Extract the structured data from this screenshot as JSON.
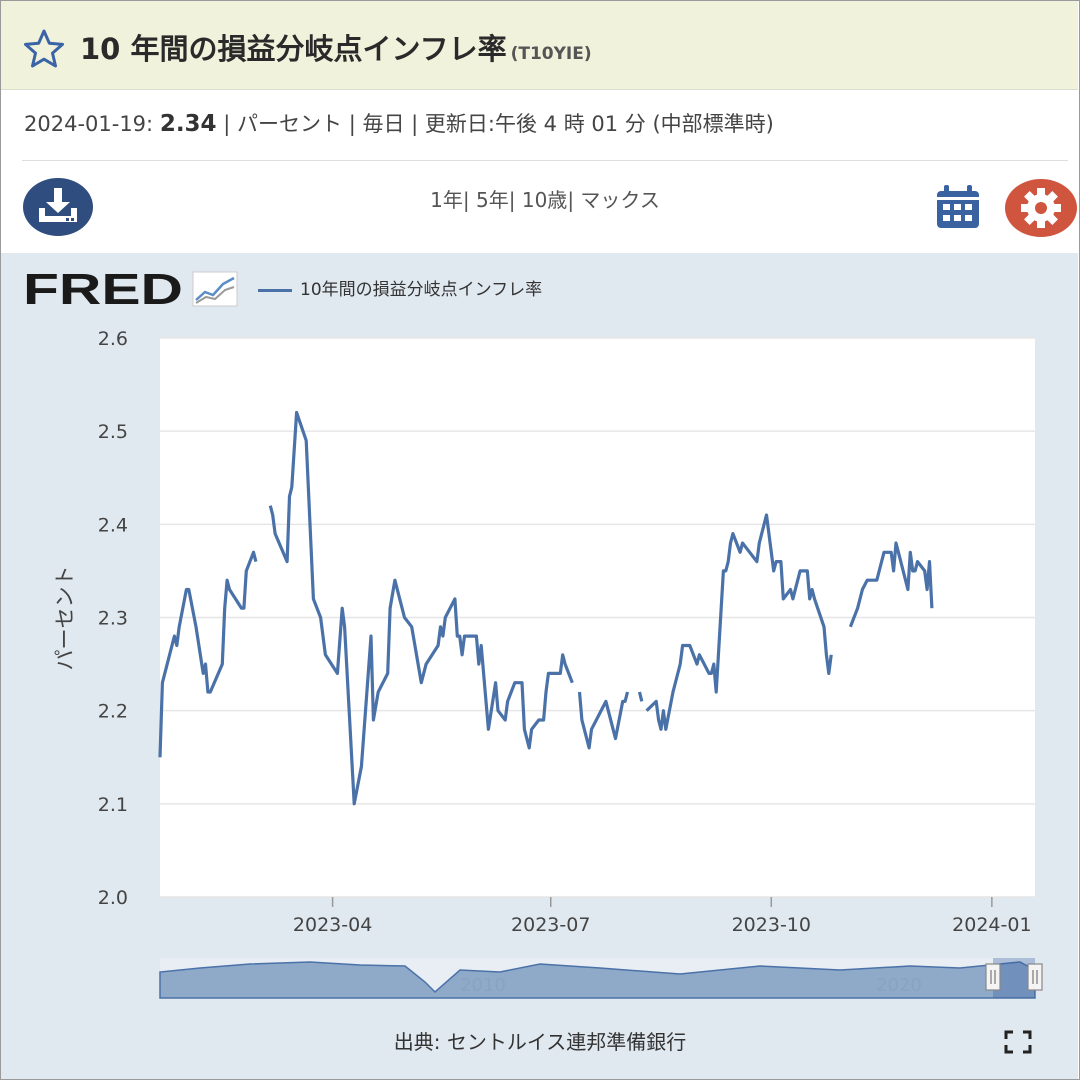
{
  "header": {
    "title": "10 年間の損益分岐点インフレ率",
    "series_id": "(T10YIE)"
  },
  "meta": {
    "date": "2024-01-19:",
    "value": "2.34",
    "unit": "| パーセント",
    "frequency": "| 毎日",
    "updated": "| 更新日:午後 4 時 01 分 (中部標準時)"
  },
  "toolbar": {
    "ranges": [
      "1年",
      "5年",
      "10歳",
      "マックス"
    ],
    "icons": [
      "download-icon",
      "calendar-icon",
      "gear-icon"
    ]
  },
  "logo": {
    "text": "FRED"
  },
  "legend": {
    "label": "10年間の損益分岐点インフレ率"
  },
  "footer": {
    "source": "出典: セントルイス連邦準備銀行"
  },
  "colors": {
    "line": "#4a72a8",
    "title_bg": "#f1f2dc",
    "chart_bg": "#e1e9f0",
    "download": "#2f4d7e",
    "gear": "#d0553f",
    "calendar": "#3a62a0"
  },
  "navigator": {
    "labels": [
      "2010",
      "2020"
    ]
  },
  "chart_data": {
    "type": "line",
    "ylabel": "パーセント",
    "ylim": [
      2.0,
      2.6
    ],
    "yticks": [
      "2.0",
      "2.1",
      "2.2",
      "2.3",
      "2.4",
      "2.5",
      "2.6"
    ],
    "xlim": [
      "2023-01-19",
      "2024-01-19"
    ],
    "xticks": [
      {
        "date": "2023-04-01",
        "label": "2023-04"
      },
      {
        "date": "2023-07-01",
        "label": "2023-07"
      },
      {
        "date": "2023-10-01",
        "label": "2023-10"
      },
      {
        "date": "2024-01-01",
        "label": "2024-01"
      }
    ],
    "series": [
      {
        "segments": [
          [
            [
              "2023-01-19",
              2.15
            ],
            [
              "2023-01-20",
              2.23
            ],
            [
              "2023-01-25",
              2.28
            ],
            [
              "2023-01-26",
              2.27
            ],
            [
              "2023-01-27",
              2.29
            ],
            [
              "2023-01-30",
              2.33
            ],
            [
              "2023-01-31",
              2.33
            ],
            [
              "2023-02-03",
              2.29
            ],
            [
              "2023-02-06",
              2.24
            ],
            [
              "2023-02-07",
              2.25
            ],
            [
              "2023-02-08",
              2.22
            ],
            [
              "2023-02-09",
              2.22
            ],
            [
              "2023-02-14",
              2.25
            ],
            [
              "2023-02-15",
              2.31
            ],
            [
              "2023-02-16",
              2.34
            ],
            [
              "2023-02-17",
              2.33
            ],
            [
              "2023-02-22",
              2.31
            ],
            [
              "2023-02-23",
              2.31
            ],
            [
              "2023-02-24",
              2.35
            ],
            [
              "2023-02-27",
              2.37
            ],
            [
              "2023-02-28",
              2.36
            ]
          ],
          [
            [
              "2023-03-06",
              2.42
            ],
            [
              "2023-03-07",
              2.41
            ],
            [
              "2023-03-08",
              2.39
            ],
            [
              "2023-03-13",
              2.36
            ],
            [
              "2023-03-14",
              2.43
            ],
            [
              "2023-03-15",
              2.44
            ],
            [
              "2023-03-17",
              2.52
            ],
            [
              "2023-03-21",
              2.49
            ],
            [
              "2023-03-24",
              2.32
            ],
            [
              "2023-03-27",
              2.3
            ],
            [
              "2023-03-29",
              2.26
            ],
            [
              "2023-04-03",
              2.24
            ],
            [
              "2023-04-05",
              2.31
            ],
            [
              "2023-04-06",
              2.29
            ],
            [
              "2023-04-10",
              2.1
            ],
            [
              "2023-04-13",
              2.14
            ],
            [
              "2023-04-17",
              2.28
            ],
            [
              "2023-04-18",
              2.19
            ],
            [
              "2023-04-20",
              2.22
            ],
            [
              "2023-04-24",
              2.24
            ],
            [
              "2023-04-25",
              2.31
            ],
            [
              "2023-04-27",
              2.34
            ],
            [
              "2023-05-01",
              2.3
            ],
            [
              "2023-05-04",
              2.29
            ],
            [
              "2023-05-08",
              2.23
            ],
            [
              "2023-05-10",
              2.25
            ],
            [
              "2023-05-15",
              2.27
            ],
            [
              "2023-05-16",
              2.29
            ],
            [
              "2023-05-17",
              2.28
            ],
            [
              "2023-05-18",
              2.3
            ],
            [
              "2023-05-22",
              2.32
            ],
            [
              "2023-05-23",
              2.28
            ],
            [
              "2023-05-24",
              2.28
            ],
            [
              "2023-05-25",
              2.26
            ],
            [
              "2023-05-26",
              2.28
            ],
            [
              "2023-05-31",
              2.28
            ],
            [
              "2023-06-01",
              2.25
            ],
            [
              "2023-06-02",
              2.27
            ],
            [
              "2023-06-05",
              2.18
            ],
            [
              "2023-06-08",
              2.23
            ],
            [
              "2023-06-09",
              2.2
            ],
            [
              "2023-06-12",
              2.19
            ],
            [
              "2023-06-13",
              2.21
            ],
            [
              "2023-06-16",
              2.23
            ],
            [
              "2023-06-19",
              2.23
            ],
            [
              "2023-06-20",
              2.18
            ],
            [
              "2023-06-22",
              2.16
            ],
            [
              "2023-06-23",
              2.18
            ],
            [
              "2023-06-26",
              2.19
            ],
            [
              "2023-06-28",
              2.19
            ],
            [
              "2023-06-29",
              2.22
            ],
            [
              "2023-06-30",
              2.24
            ],
            [
              "2023-07-03",
              2.24
            ],
            [
              "2023-07-05",
              2.24
            ],
            [
              "2023-07-06",
              2.26
            ],
            [
              "2023-07-07",
              2.25
            ],
            [
              "2023-07-10",
              2.23
            ]
          ],
          [
            [
              "2023-07-13",
              2.22
            ],
            [
              "2023-07-14",
              2.19
            ],
            [
              "2023-07-17",
              2.16
            ],
            [
              "2023-07-18",
              2.18
            ],
            [
              "2023-07-20",
              2.19
            ],
            [
              "2023-07-24",
              2.21
            ],
            [
              "2023-07-25",
              2.2
            ],
            [
              "2023-07-28",
              2.17
            ],
            [
              "2023-07-31",
              2.21
            ],
            [
              "2023-08-01",
              2.21
            ],
            [
              "2023-08-02",
              2.22
            ]
          ],
          [
            [
              "2023-08-07",
              2.22
            ],
            [
              "2023-08-08",
              2.21
            ]
          ],
          [
            [
              "2023-08-10",
              2.2
            ],
            [
              "2023-08-14",
              2.21
            ],
            [
              "2023-08-15",
              2.19
            ],
            [
              "2023-08-16",
              2.18
            ],
            [
              "2023-08-17",
              2.2
            ],
            [
              "2023-08-18",
              2.18
            ],
            [
              "2023-08-21",
              2.22
            ],
            [
              "2023-08-24",
              2.25
            ],
            [
              "2023-08-25",
              2.27
            ],
            [
              "2023-08-28",
              2.27
            ],
            [
              "2023-08-31",
              2.25
            ],
            [
              "2023-09-01",
              2.26
            ],
            [
              "2023-09-05",
              2.24
            ],
            [
              "2023-09-06",
              2.24
            ],
            [
              "2023-09-07",
              2.25
            ],
            [
              "2023-09-08",
              2.22
            ],
            [
              "2023-09-11",
              2.35
            ],
            [
              "2023-09-12",
              2.35
            ],
            [
              "2023-09-13",
              2.36
            ],
            [
              "2023-09-14",
              2.38
            ],
            [
              "2023-09-15",
              2.39
            ],
            [
              "2023-09-18",
              2.37
            ],
            [
              "2023-09-19",
              2.38
            ],
            [
              "2023-09-22",
              2.37
            ],
            [
              "2023-09-25",
              2.36
            ],
            [
              "2023-09-26",
              2.38
            ],
            [
              "2023-09-29",
              2.41
            ],
            [
              "2023-10-02",
              2.35
            ],
            [
              "2023-10-03",
              2.36
            ],
            [
              "2023-10-04",
              2.36
            ],
            [
              "2023-10-05",
              2.36
            ],
            [
              "2023-10-06",
              2.32
            ],
            [
              "2023-10-09",
              2.33
            ],
            [
              "2023-10-10",
              2.32
            ],
            [
              "2023-10-12",
              2.34
            ],
            [
              "2023-10-13",
              2.35
            ],
            [
              "2023-10-16",
              2.35
            ],
            [
              "2023-10-17",
              2.32
            ],
            [
              "2023-10-18",
              2.33
            ],
            [
              "2023-10-19",
              2.32
            ],
            [
              "2023-10-23",
              2.29
            ],
            [
              "2023-10-24",
              2.26
            ],
            [
              "2023-10-25",
              2.24
            ],
            [
              "2023-10-26",
              2.26
            ]
          ],
          [
            [
              "2023-11-03",
              2.29
            ],
            [
              "2023-11-06",
              2.31
            ],
            [
              "2023-11-07",
              2.32
            ],
            [
              "2023-11-08",
              2.33
            ],
            [
              "2023-11-10",
              2.34
            ],
            [
              "2023-11-13",
              2.34
            ],
            [
              "2023-11-14",
              2.34
            ],
            [
              "2023-11-15",
              2.35
            ],
            [
              "2023-11-16",
              2.36
            ],
            [
              "2023-11-17",
              2.37
            ],
            [
              "2023-11-20",
              2.37
            ],
            [
              "2023-11-21",
              2.35
            ],
            [
              "2023-11-22",
              2.38
            ],
            [
              "2023-11-24",
              2.36
            ],
            [
              "2023-11-27",
              2.33
            ],
            [
              "2023-11-28",
              2.37
            ],
            [
              "2023-11-29",
              2.35
            ],
            [
              "2023-11-30",
              2.35
            ],
            [
              "2023-12-01",
              2.36
            ],
            [
              "2023-12-04",
              2.35
            ],
            [
              "2023-12-05",
              2.33
            ],
            [
              "2023-12-06",
              2.36
            ],
            [
              "2023-12-07",
              2.31
            ]
          ]
        ]
      }
    ]
  }
}
